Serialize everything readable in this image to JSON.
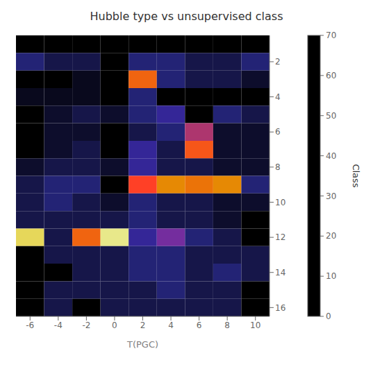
{
  "chart_data": {
    "type": "heatmap",
    "title": "Hubble type vs unsupervised class",
    "xlabel": "T(PGC)",
    "colorbar_label": "Class",
    "color": "CMRmap",
    "x_edges": [
      -7,
      -5,
      -3,
      -1,
      1,
      3,
      5,
      7,
      9,
      11
    ],
    "y_edges": [
      0.5,
      1.5,
      2.5,
      3.5,
      4.5,
      5.5,
      6.5,
      7.5,
      8.5,
      9.5,
      10.5,
      11.5,
      12.5,
      13.5,
      14.5,
      15.5,
      16.5
    ],
    "xlim": [
      -7,
      11
    ],
    "ylim": [
      16.5,
      0.5
    ],
    "xticks": [
      -6,
      -4,
      -2,
      0,
      2,
      4,
      6,
      8,
      10
    ],
    "yticks": [
      2,
      4,
      6,
      8,
      10,
      12,
      14,
      16
    ],
    "colorbar_range": [
      0,
      70
    ],
    "colorbar_ticks": [
      0,
      10,
      20,
      30,
      40,
      50,
      60,
      70
    ],
    "cells": [
      [
        0,
        0,
        0,
        0,
        0,
        0,
        0,
        0,
        0
      ],
      [
        8,
        5,
        5,
        0,
        8,
        8,
        5,
        5,
        8
      ],
      [
        0,
        0,
        2,
        0,
        40,
        8,
        5,
        5,
        3
      ],
      [
        2,
        2,
        2,
        0,
        8,
        0,
        0,
        0,
        0
      ],
      [
        0,
        3,
        5,
        3,
        8,
        12,
        0,
        8,
        5
      ],
      [
        0,
        3,
        3,
        0,
        5,
        8,
        28,
        3,
        3
      ],
      [
        0,
        3,
        5,
        0,
        12,
        5,
        38,
        3,
        3
      ],
      [
        3,
        5,
        5,
        3,
        12,
        5,
        5,
        3,
        3
      ],
      [
        5,
        8,
        8,
        0,
        35,
        45,
        42,
        45,
        8
      ],
      [
        5,
        8,
        5,
        3,
        8,
        5,
        5,
        3,
        3
      ],
      [
        5,
        5,
        5,
        5,
        8,
        5,
        5,
        3,
        0
      ],
      [
        58,
        5,
        40,
        62,
        12,
        22,
        8,
        5,
        0
      ],
      [
        0,
        5,
        5,
        5,
        8,
        8,
        5,
        5,
        5
      ],
      [
        0,
        0,
        5,
        5,
        8,
        8,
        5,
        8,
        5
      ],
      [
        0,
        5,
        5,
        5,
        5,
        8,
        5,
        5,
        0
      ],
      [
        0,
        5,
        0,
        5,
        5,
        5,
        5,
        5,
        0
      ]
    ]
  }
}
